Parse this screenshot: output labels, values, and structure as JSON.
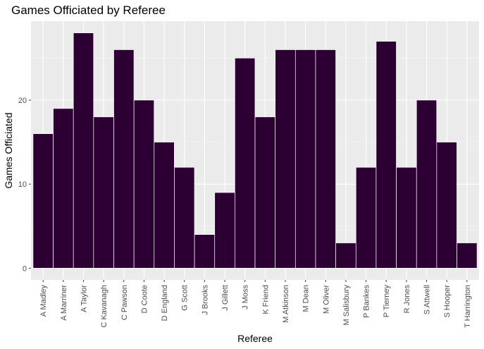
{
  "chart_data": {
    "type": "bar",
    "title": "Games Officiated by Referee",
    "xlabel": "Referee",
    "ylabel": "Games Officiated",
    "categories": [
      "A Madley",
      "A Marriner",
      "A Taylor",
      "C Kavanagh",
      "C Pawson",
      "D Coote",
      "D England",
      "G Scott",
      "J Brooks",
      "J Gillett",
      "J Moss",
      "K Friend",
      "M Atkinson",
      "M Dean",
      "M Oliver",
      "M Salisbury",
      "P Bankes",
      "P Tierney",
      "R Jones",
      "S Attwell",
      "S Hooper",
      "T Harrington"
    ],
    "values": [
      16,
      19,
      28,
      18,
      26,
      20,
      15,
      12,
      4,
      9,
      25,
      18,
      26,
      26,
      26,
      3,
      12,
      27,
      12,
      20,
      15,
      3
    ],
    "yticks": [
      0,
      10,
      20
    ],
    "ytick_labels": [
      "0",
      "10",
      "20"
    ],
    "ylim": [
      -1.4,
      29.4
    ],
    "grid": true,
    "colors": {
      "bar_fill": "#2d0033",
      "bar_stroke": "#ffffff",
      "panel_bg": "#ebebeb",
      "grid_major": "#ffffff",
      "grid_minor": "#f3f3f3"
    }
  }
}
